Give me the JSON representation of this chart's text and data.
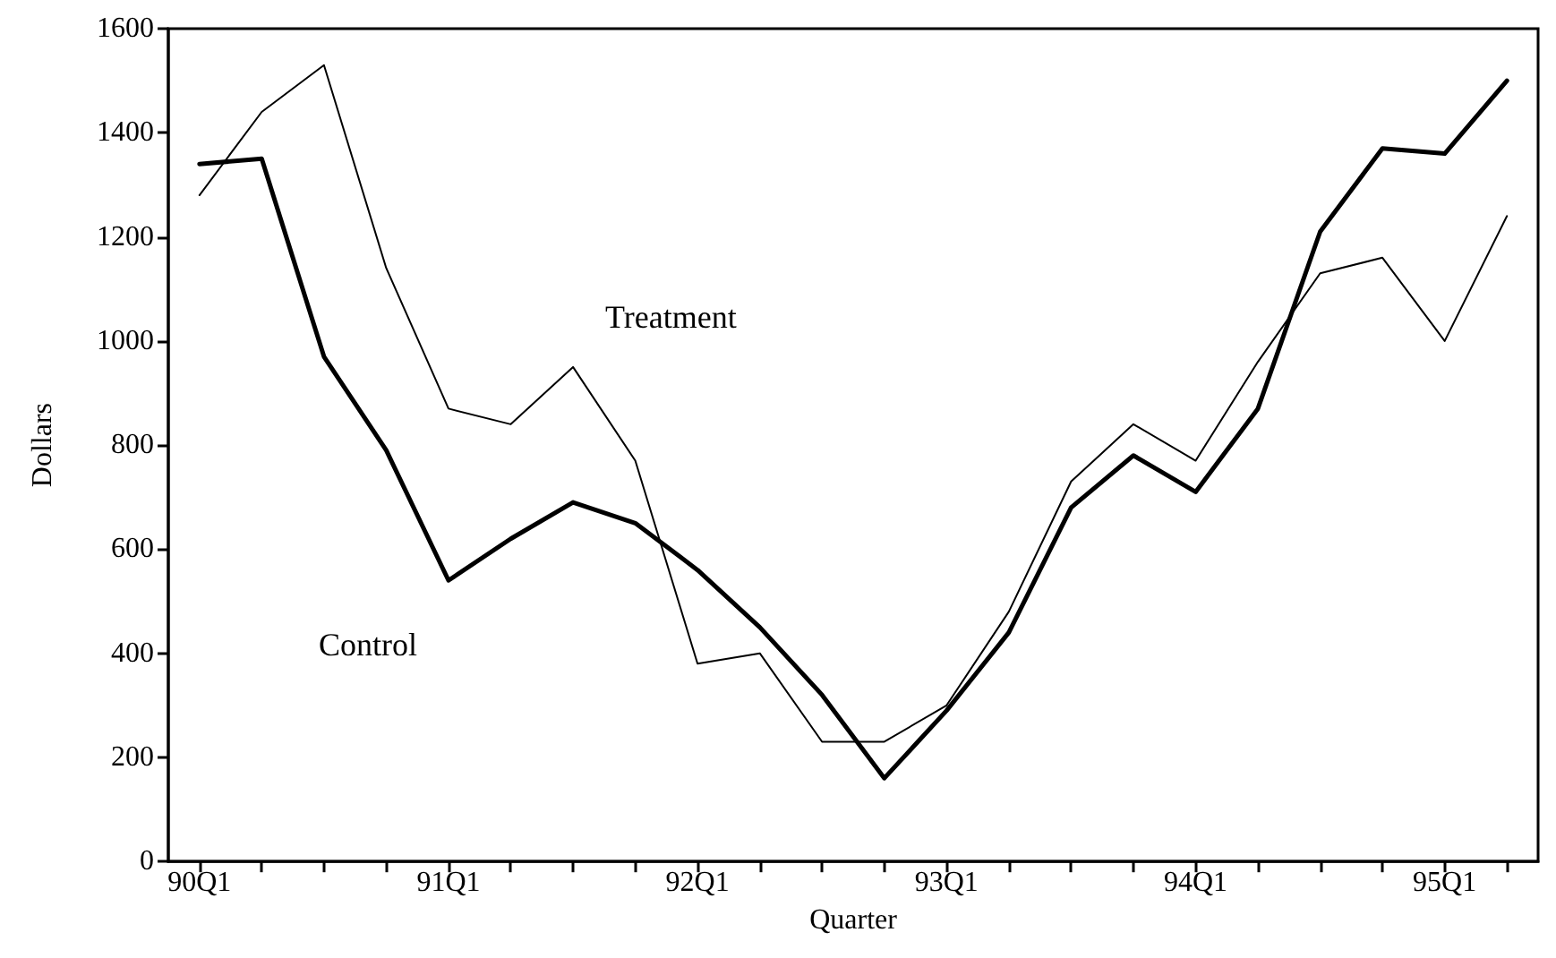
{
  "chart_data": {
    "type": "line",
    "xlabel": "Quarter",
    "ylabel": "Dollars",
    "categories": [
      "90Q1",
      null,
      null,
      null,
      "91Q1",
      null,
      null,
      null,
      "92Q1",
      null,
      null,
      null,
      "93Q1",
      null,
      null,
      null,
      "94Q1",
      null,
      null,
      null,
      "95Q1",
      null
    ],
    "series": [
      {
        "name": "Treatment",
        "color": "#000000",
        "values": [
          1280,
          1440,
          1530,
          1140,
          870,
          840,
          950,
          770,
          380,
          400,
          230,
          230,
          300,
          480,
          730,
          840,
          770,
          960,
          1130,
          1160,
          1000,
          1240
        ]
      },
      {
        "name": "Control",
        "color": "#000000",
        "values": [
          1340,
          1350,
          970,
          790,
          540,
          620,
          690,
          650,
          560,
          450,
          320,
          160,
          290,
          440,
          680,
          780,
          710,
          870,
          1210,
          1370,
          1360,
          1500
        ]
      }
    ],
    "ylim": [
      0,
      1600
    ],
    "yticks": [
      0,
      200,
      400,
      600,
      800,
      1000,
      1200,
      1400,
      1600
    ],
    "grid": false,
    "legend": false,
    "marker": "none",
    "line_style": "solid"
  }
}
